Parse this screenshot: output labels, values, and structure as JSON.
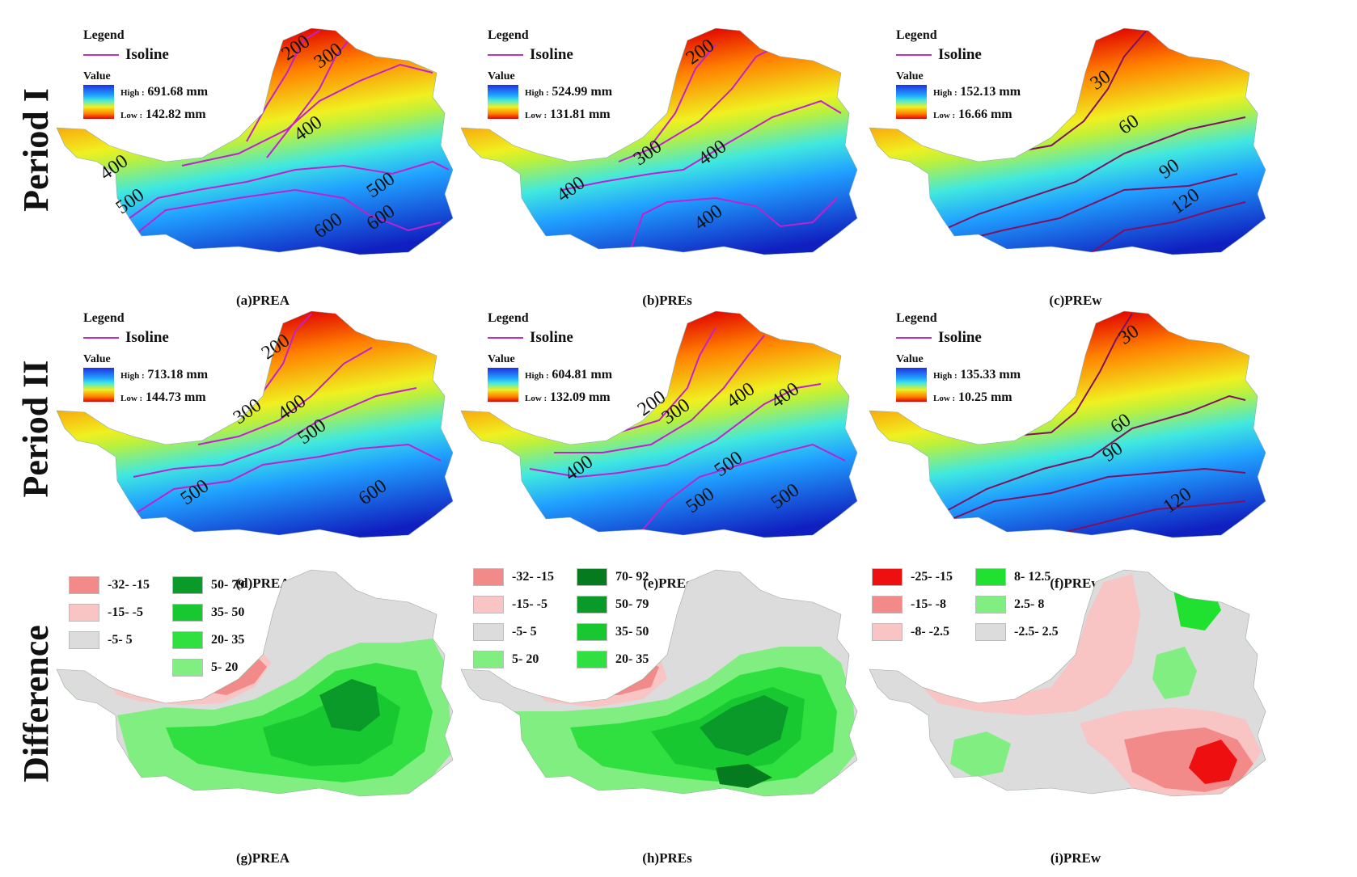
{
  "rows": [
    {
      "label": "Period I"
    },
    {
      "label": "Period II"
    },
    {
      "label": "Difference"
    }
  ],
  "panels": [
    {
      "caption": "(a)PREA",
      "legend": {
        "title": "Legend",
        "isoline": "Isoline",
        "value": "Value",
        "high_key": "High :",
        "high": "691.68 mm",
        "low_key": "Low :",
        "low": "142.82 mm"
      },
      "isolines": [
        "200",
        "300",
        "400",
        "400",
        "500",
        "500",
        "600",
        "600"
      ]
    },
    {
      "caption": "(b)PREs",
      "legend": {
        "title": "Legend",
        "isoline": "Isoline",
        "value": "Value",
        "high_key": "High :",
        "high": "524.99 mm",
        "low_key": "Low :",
        "low": "131.81 mm"
      },
      "isolines": [
        "200",
        "300",
        "400",
        "400",
        "400"
      ]
    },
    {
      "caption": "(c)PREw",
      "legend": {
        "title": "Legend",
        "isoline": "Isoline",
        "value": "Value",
        "high_key": "High :",
        "high": "152.13 mm",
        "low_key": "Low :",
        "low": "16.66 mm"
      },
      "isolines": [
        "30",
        "60",
        "90",
        "120"
      ]
    },
    {
      "caption": "(d)PREA",
      "legend": {
        "title": "Legend",
        "isoline": "Isoline",
        "value": "Value",
        "high_key": "High :",
        "high": "713.18 mm",
        "low_key": "Low :",
        "low": "144.73 mm"
      },
      "isolines": [
        "200",
        "300",
        "400",
        "500",
        "500",
        "600"
      ]
    },
    {
      "caption": "(e)PREs",
      "legend": {
        "title": "Legend",
        "isoline": "Isoline",
        "value": "Value",
        "high_key": "High :",
        "high": "604.81 mm",
        "low_key": "Low :",
        "low": "132.09 mm"
      },
      "isolines": [
        "200",
        "300",
        "400",
        "400",
        "400",
        "500",
        "500",
        "500"
      ]
    },
    {
      "caption": "(f)PREw",
      "legend": {
        "title": "Legend",
        "isoline": "Isoline",
        "value": "Value",
        "high_key": "High :",
        "high": "135.33 mm",
        "low_key": "Low :",
        "low": "10.25 mm"
      },
      "isolines": [
        "30",
        "60",
        "90",
        "120"
      ]
    },
    {
      "caption": "(g)PREA",
      "classes": [
        {
          "label": "-32- -15",
          "color": "#f28a8a"
        },
        {
          "label": "-15- -5",
          "color": "#f8c4c4"
        },
        {
          "label": "-5- 5",
          "color": "#dcdcdc"
        },
        {
          "label": "50- 79",
          "color": "#0a9a2a"
        },
        {
          "label": "35- 50",
          "color": "#18c830"
        },
        {
          "label": "20- 35",
          "color": "#30e040"
        },
        {
          "label": "5- 20",
          "color": "#80ee80"
        }
      ]
    },
    {
      "caption": "(h)PREs",
      "classes": [
        {
          "label": "-32- -15",
          "color": "#f28a8a"
        },
        {
          "label": "-15- -5",
          "color": "#f8c4c4"
        },
        {
          "label": "-5- 5",
          "color": "#dcdcdc"
        },
        {
          "label": "5- 20",
          "color": "#80ee80"
        },
        {
          "label": "70- 92",
          "color": "#067a1e"
        },
        {
          "label": "50- 79",
          "color": "#0a9a2a"
        },
        {
          "label": "35- 50",
          "color": "#18c830"
        },
        {
          "label": "20- 35",
          "color": "#30e040"
        }
      ]
    },
    {
      "caption": "(i)PREw",
      "classes": [
        {
          "label": "-25- -15",
          "color": "#ee1010"
        },
        {
          "label": "-15- -8",
          "color": "#f28a8a"
        },
        {
          "label": "-8- -2.5",
          "color": "#f8c4c4"
        },
        {
          "label": "8- 12.5",
          "color": "#20e030"
        },
        {
          "label": "2.5- 8",
          "color": "#80ee80"
        },
        {
          "label": "-2.5- 2.5",
          "color": "#dcdcdc"
        }
      ]
    }
  ]
}
